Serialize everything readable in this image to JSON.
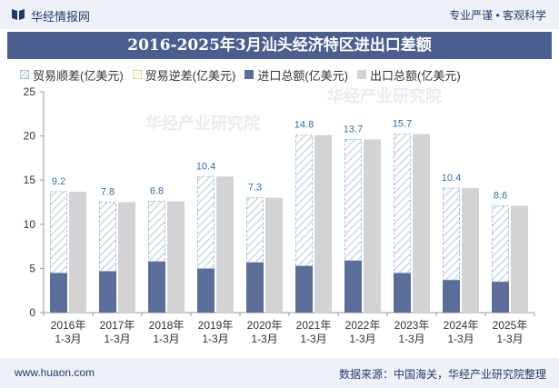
{
  "header": {
    "brand": "华经情报网",
    "slogan": "专业严谨 • 客观科学",
    "logo_icon": "book-icon"
  },
  "title": "2016-2025年3月汕头经济特区进出口差额",
  "legend": [
    {
      "label": "贸易顺差(亿美元)",
      "kind": "surplus"
    },
    {
      "label": "贸易逆差(亿美元)",
      "kind": "deficit"
    },
    {
      "label": "进口总额(亿美元)",
      "kind": "import"
    },
    {
      "label": "出口总额(亿美元)",
      "kind": "export"
    }
  ],
  "footer": {
    "website": "www.huaon.com",
    "source": "数据来源：中国海关，华经产业研究院整理"
  },
  "watermark": "华经产业研究院",
  "colors": {
    "import": "#5b6e99",
    "export": "#d3d3d5",
    "surplus_hatch": "#c9d9ea",
    "surplus_border": "#a9bfd6",
    "label": "#2f6fa6",
    "title_bg": "#4a5f90"
  },
  "chart_data": {
    "type": "bar",
    "categories": [
      "2016年\n1-3月",
      "2017年\n1-3月",
      "2018年\n1-3月",
      "2019年\n1-3月",
      "2020年\n1-3月",
      "2021年\n1-3月",
      "2022年\n1-3月",
      "2023年\n1-3月",
      "2024年\n1-3月",
      "2025年\n1-3月"
    ],
    "series": [
      {
        "name": "进口总额(亿美元)",
        "values": [
          4.5,
          4.7,
          5.8,
          5.0,
          5.7,
          5.3,
          5.9,
          4.5,
          3.7,
          3.5
        ]
      },
      {
        "name": "出口总额(亿美元)",
        "values": [
          13.7,
          12.5,
          12.6,
          15.4,
          13.0,
          20.1,
          19.6,
          20.2,
          14.1,
          12.1
        ]
      },
      {
        "name": "贸易顺差(亿美元)",
        "values": [
          9.2,
          7.8,
          6.8,
          10.4,
          7.3,
          14.8,
          13.7,
          15.7,
          10.4,
          8.6
        ]
      },
      {
        "name": "贸易逆差(亿美元)",
        "values": [
          0,
          0,
          0,
          0,
          0,
          0,
          0,
          0,
          0,
          0
        ]
      }
    ],
    "data_labels": [
      "9.2",
      "7.8",
      "6.8",
      "10.4",
      "7.3",
      "14.8",
      "13.7",
      "15.7",
      "10.4",
      "8.6"
    ],
    "y_ticks": [
      "0",
      "5",
      "10",
      "15",
      "20",
      "25"
    ],
    "ylim": [
      0,
      25
    ],
    "grid": false,
    "legend_position": "top"
  }
}
